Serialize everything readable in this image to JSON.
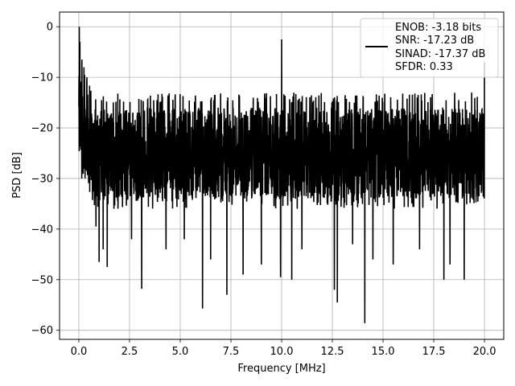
{
  "chart_data": {
    "type": "line",
    "xlabel": "Frequency [MHz]",
    "ylabel": "PSD [dB]",
    "xlim": [
      -0.95,
      20.95
    ],
    "ylim": [
      -61.8,
      2.9
    ],
    "xticks": [
      0.0,
      2.5,
      5.0,
      7.5,
      10.0,
      12.5,
      15.0,
      17.5,
      20.0
    ],
    "xtick_labels": [
      "0.0",
      "2.5",
      "5.0",
      "7.5",
      "10.0",
      "12.5",
      "15.0",
      "17.5",
      "20.0"
    ],
    "yticks": [
      0,
      -10,
      -20,
      -30,
      -40,
      -50,
      -60
    ],
    "ytick_labels": [
      "0",
      "−10",
      "−20",
      "−30",
      "−40",
      "−50",
      "−60"
    ],
    "grid": true,
    "legend_position": "top-right",
    "series": [
      {
        "color": "#000000",
        "noise_floor_db": -25,
        "upper_envelope_db": -13,
        "lower_envelope_db": -36,
        "peaks": [
          {
            "x": 0.02,
            "y": 0.0
          },
          {
            "x": 0.05,
            "y": -3.0
          },
          {
            "x": 0.15,
            "y": -6.5
          },
          {
            "x": 0.25,
            "y": -8.0
          },
          {
            "x": 0.4,
            "y": -10.0
          },
          {
            "x": 10.0,
            "y": -2.5
          },
          {
            "x": 20.0,
            "y": -7.0
          }
        ],
        "dips": [
          {
            "x": 0.55,
            "y": -29.5
          },
          {
            "x": 0.85,
            "y": -39.5
          },
          {
            "x": 1.0,
            "y": -46.5
          },
          {
            "x": 1.2,
            "y": -44.0
          },
          {
            "x": 1.4,
            "y": -47.5
          },
          {
            "x": 2.6,
            "y": -42.0
          },
          {
            "x": 3.1,
            "y": -51.8
          },
          {
            "x": 4.3,
            "y": -44.0
          },
          {
            "x": 5.2,
            "y": -42.0
          },
          {
            "x": 6.1,
            "y": -55.7
          },
          {
            "x": 6.5,
            "y": -46.0
          },
          {
            "x": 7.3,
            "y": -53.0
          },
          {
            "x": 8.1,
            "y": -49.0
          },
          {
            "x": 9.0,
            "y": -47.0
          },
          {
            "x": 9.95,
            "y": -49.5
          },
          {
            "x": 10.5,
            "y": -50.0
          },
          {
            "x": 11.0,
            "y": -44.0
          },
          {
            "x": 12.6,
            "y": -52.0
          },
          {
            "x": 12.75,
            "y": -54.5
          },
          {
            "x": 13.5,
            "y": -43.0
          },
          {
            "x": 14.1,
            "y": -58.6
          },
          {
            "x": 14.5,
            "y": -46.0
          },
          {
            "x": 15.5,
            "y": -47.0
          },
          {
            "x": 16.8,
            "y": -44.0
          },
          {
            "x": 18.0,
            "y": -50.0
          },
          {
            "x": 18.3,
            "y": -47.0
          },
          {
            "x": 19.0,
            "y": -50.0
          }
        ]
      }
    ],
    "legend": {
      "lines": [
        "ENOB: -3.18 bits",
        "SNR: -17.23 dB",
        "SINAD: -17.37 dB",
        "SFDR: 0.33"
      ]
    }
  }
}
